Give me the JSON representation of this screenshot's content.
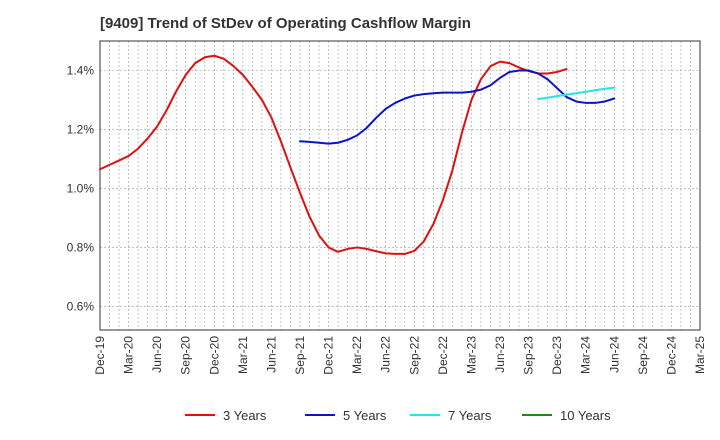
{
  "chart_data": {
    "type": "line",
    "title": "[9409]  Trend of StDev of Operating Cashflow Margin",
    "xlabel": "",
    "ylabel": "",
    "x_ticks": [
      "Dec-19",
      "Mar-20",
      "Jun-20",
      "Sep-20",
      "Dec-20",
      "Mar-21",
      "Jun-21",
      "Sep-21",
      "Dec-21",
      "Mar-22",
      "Jun-22",
      "Sep-22",
      "Dec-22",
      "Mar-23",
      "Jun-23",
      "Sep-23",
      "Dec-23",
      "Mar-24",
      "Jun-24",
      "Sep-24",
      "Dec-24",
      "Mar-25"
    ],
    "y_ticks": [
      "0.6%",
      "0.8%",
      "1.0%",
      "1.2%",
      "1.4%"
    ],
    "y_tick_values": [
      0.6,
      0.8,
      1.0,
      1.2,
      1.4
    ],
    "ylim": [
      0.52,
      1.5
    ],
    "grid": true,
    "legend_position": "bottom",
    "series": [
      {
        "name": "3 Years",
        "color": "#dd1111",
        "points": [
          [
            0,
            1.065
          ],
          [
            0.33,
            1.08
          ],
          [
            0.67,
            1.095
          ],
          [
            1,
            1.11
          ],
          [
            1.33,
            1.135
          ],
          [
            1.67,
            1.17
          ],
          [
            2,
            1.21
          ],
          [
            2.33,
            1.265
          ],
          [
            2.67,
            1.33
          ],
          [
            3,
            1.385
          ],
          [
            3.33,
            1.425
          ],
          [
            3.67,
            1.445
          ],
          [
            4,
            1.45
          ],
          [
            4.33,
            1.44
          ],
          [
            4.67,
            1.415
          ],
          [
            5,
            1.385
          ],
          [
            5.33,
            1.345
          ],
          [
            5.67,
            1.3
          ],
          [
            6,
            1.24
          ],
          [
            6.33,
            1.16
          ],
          [
            6.67,
            1.07
          ],
          [
            7,
            0.985
          ],
          [
            7.33,
            0.905
          ],
          [
            7.67,
            0.84
          ],
          [
            8,
            0.8
          ],
          [
            8.33,
            0.785
          ],
          [
            8.67,
            0.795
          ],
          [
            9,
            0.8
          ],
          [
            9.33,
            0.795
          ],
          [
            9.67,
            0.787
          ],
          [
            10,
            0.78
          ],
          [
            10.33,
            0.778
          ],
          [
            10.67,
            0.778
          ],
          [
            11,
            0.788
          ],
          [
            11.33,
            0.82
          ],
          [
            11.67,
            0.88
          ],
          [
            12,
            0.96
          ],
          [
            12.33,
            1.06
          ],
          [
            12.67,
            1.19
          ],
          [
            13,
            1.3
          ],
          [
            13.33,
            1.37
          ],
          [
            13.67,
            1.415
          ],
          [
            14,
            1.43
          ],
          [
            14.33,
            1.425
          ],
          [
            14.67,
            1.41
          ],
          [
            15,
            1.398
          ],
          [
            15.33,
            1.39
          ],
          [
            15.67,
            1.39
          ],
          [
            16,
            1.395
          ],
          [
            16.33,
            1.405
          ]
        ]
      },
      {
        "name": "5 Years",
        "color": "#0a14c8",
        "points": [
          [
            7,
            1.16
          ],
          [
            7.33,
            1.158
          ],
          [
            7.67,
            1.155
          ],
          [
            8,
            1.152
          ],
          [
            8.33,
            1.155
          ],
          [
            8.67,
            1.165
          ],
          [
            9,
            1.18
          ],
          [
            9.33,
            1.205
          ],
          [
            9.67,
            1.24
          ],
          [
            10,
            1.27
          ],
          [
            10.33,
            1.29
          ],
          [
            10.67,
            1.305
          ],
          [
            11,
            1.315
          ],
          [
            11.33,
            1.32
          ],
          [
            11.67,
            1.323
          ],
          [
            12,
            1.325
          ],
          [
            12.33,
            1.325
          ],
          [
            12.67,
            1.325
          ],
          [
            13,
            1.328
          ],
          [
            13.33,
            1.335
          ],
          [
            13.67,
            1.35
          ],
          [
            14,
            1.375
          ],
          [
            14.33,
            1.395
          ],
          [
            14.67,
            1.4
          ],
          [
            15,
            1.4
          ],
          [
            15.33,
            1.39
          ],
          [
            15.67,
            1.37
          ],
          [
            16,
            1.34
          ],
          [
            16.33,
            1.31
          ],
          [
            16.67,
            1.295
          ],
          [
            17,
            1.29
          ],
          [
            17.33,
            1.29
          ],
          [
            17.67,
            1.295
          ],
          [
            18,
            1.305
          ]
        ]
      },
      {
        "name": "7 Years",
        "color": "#22e6e6",
        "points": [
          [
            15.33,
            1.303
          ],
          [
            15.67,
            1.308
          ],
          [
            16,
            1.313
          ],
          [
            16.33,
            1.318
          ],
          [
            16.67,
            1.323
          ],
          [
            17,
            1.328
          ],
          [
            17.33,
            1.333
          ],
          [
            17.67,
            1.338
          ],
          [
            18,
            1.342
          ]
        ]
      },
      {
        "name": "10 Years",
        "color": "#1a8a1a",
        "points": []
      }
    ]
  }
}
